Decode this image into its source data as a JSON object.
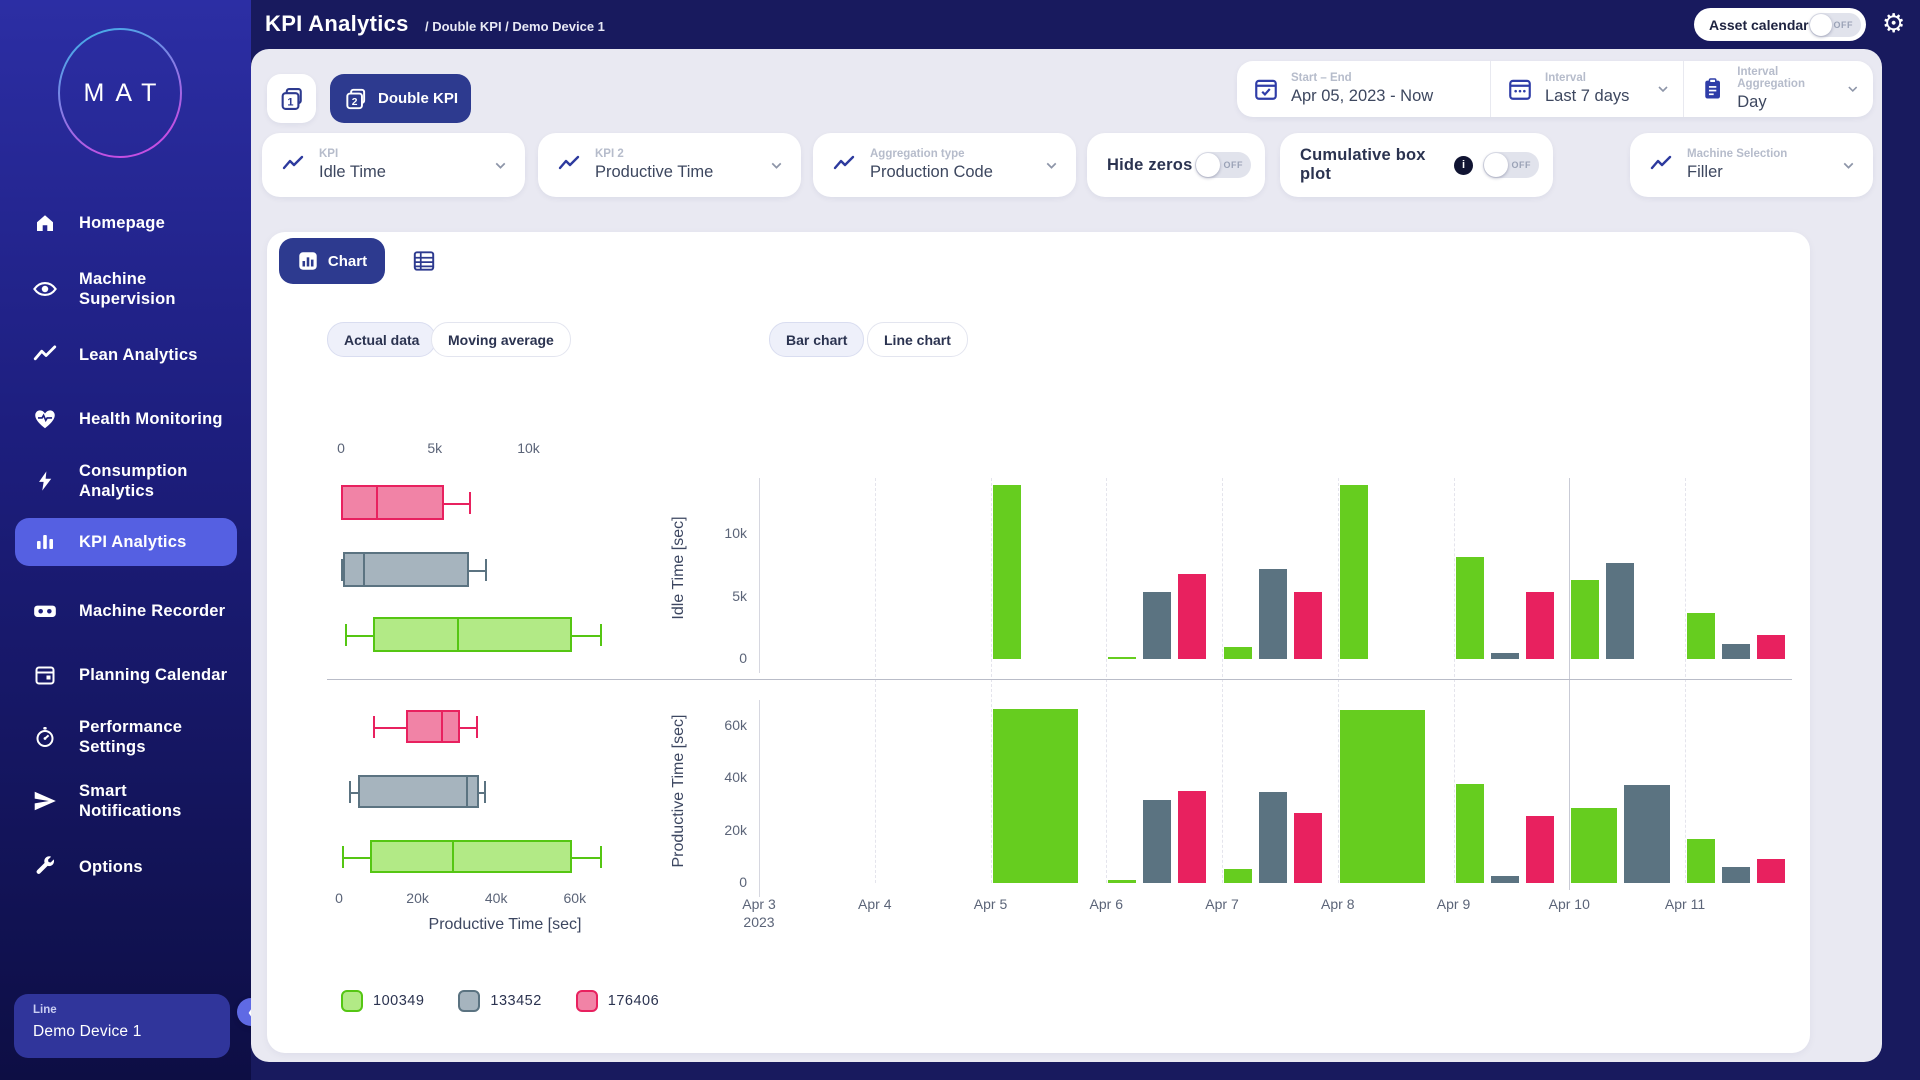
{
  "topbar": {
    "title": "KPI Analytics",
    "breadcrumb": "/ Double KPI  / Demo Device 1",
    "asset_calendar": {
      "label": "Asset calendar",
      "state": "OFF"
    }
  },
  "sidebar": {
    "logo_text": "MAT",
    "items": [
      {
        "label": "Homepage",
        "icon": "home-icon",
        "active": false
      },
      {
        "label": "Machine Supervision",
        "icon": "eye-icon",
        "active": false
      },
      {
        "label": "Lean Analytics",
        "icon": "trend-icon",
        "active": false
      },
      {
        "label": "Health Monitoring",
        "icon": "heart-icon",
        "active": false
      },
      {
        "label": "Consumption Analytics",
        "icon": "bolt-icon",
        "active": false
      },
      {
        "label": "KPI Analytics",
        "icon": "bars-icon",
        "active": true
      },
      {
        "label": "Machine Recorder",
        "icon": "recorder-icon",
        "active": false
      },
      {
        "label": "Planning Calendar",
        "icon": "calendar-icon",
        "active": false
      },
      {
        "label": "Performance Settings",
        "icon": "stopwatch-icon",
        "active": false
      },
      {
        "label": "Smart Notifications",
        "icon": "send-icon",
        "active": false
      },
      {
        "label": "Options",
        "icon": "wrench-icon",
        "active": false
      }
    ],
    "device_card": {
      "label": "Line",
      "value": "Demo Device 1"
    }
  },
  "view_toggle": {
    "double_label": "Double KPI"
  },
  "range_bar": {
    "start_end": {
      "label": "Start – End",
      "value": "Apr 05, 2023 - Now"
    },
    "interval": {
      "label": "Interval",
      "value": "Last 7 days"
    },
    "aggregation": {
      "label": "Interval Aggregation",
      "value": "Day"
    }
  },
  "filters": {
    "kpi": {
      "label": "KPI",
      "value": "Idle Time"
    },
    "kpi2": {
      "label": "KPI 2",
      "value": "Productive Time"
    },
    "agg_type": {
      "label": "Aggregation type",
      "value": "Production Code"
    },
    "hide_zeros": {
      "label": "Hide zeros",
      "state": "OFF"
    },
    "cumulative": {
      "label": "Cumulative box plot",
      "state": "OFF"
    },
    "machine": {
      "label": "Machine Selection",
      "value": "Filler"
    }
  },
  "toolbar": {
    "chart_tab": "Chart",
    "actual_data": "Actual data",
    "moving_average": "Moving average",
    "bar_chart": "Bar chart",
    "line_chart": "Line chart"
  },
  "colors": {
    "green": "#66cd1f",
    "gray": "#5b7381",
    "pink": "#e8215f",
    "green_fill": "#b2ea86",
    "gray_fill": "#a6b4be",
    "pink_fill": "#f183a6",
    "accent_navy": "#2d3a8f",
    "active_nav": "#5560e2"
  },
  "legend": [
    {
      "label": "100349",
      "color_key": "green"
    },
    {
      "label": "133452",
      "color_key": "gray"
    },
    {
      "label": "176406",
      "color_key": "pink"
    }
  ],
  "chart_data": [
    {
      "type": "boxplot",
      "title": "Idle Time [sec]",
      "orientation": "horizontal",
      "axis": {
        "min": 0,
        "max": 14800,
        "position": "top",
        "ticks": [
          {
            "label": "0",
            "value": 0
          },
          {
            "label": "5k",
            "value": 5000
          },
          {
            "label": "10k",
            "value": 10000
          }
        ]
      },
      "series": [
        {
          "name": "176406",
          "color_key": "pink",
          "min": null,
          "q1": 0,
          "median": 1850,
          "q3": 5500,
          "max": 6800
        },
        {
          "name": "133452",
          "color_key": "gray",
          "min": 0,
          "q1": 100,
          "median": 1150,
          "q3": 6800,
          "max": 7700
        },
        {
          "name": "100349",
          "color_key": "green",
          "min": 200,
          "q1": 1700,
          "median": 6200,
          "q3": 12300,
          "max": 13800
        }
      ]
    },
    {
      "type": "boxplot",
      "title": "Productive Time [sec]",
      "orientation": "horizontal",
      "axis": {
        "min": 0,
        "max": 70000,
        "position": "bottom",
        "ticks": [
          {
            "label": "0",
            "value": 0
          },
          {
            "label": "20k",
            "value": 20000
          },
          {
            "label": "40k",
            "value": 40000
          },
          {
            "label": "60k",
            "value": 60000
          }
        ]
      },
      "series": [
        {
          "name": "176406",
          "color_key": "pink",
          "min": 8700,
          "q1": 17000,
          "median": 26000,
          "q3": 30800,
          "max": 34900
        },
        {
          "name": "133452",
          "color_key": "gray",
          "min": 2500,
          "q1": 4800,
          "median": 32300,
          "q3": 35600,
          "max": 36900
        },
        {
          "name": "100349",
          "color_key": "green",
          "min": 800,
          "q1": 7900,
          "median": 28800,
          "q3": 59300,
          "max": 66400
        }
      ]
    },
    {
      "type": "bar",
      "ylabel": "Idle Time [sec]",
      "ylim": [
        0,
        14500
      ],
      "yticks": [
        {
          "label": "0",
          "value": 0
        },
        {
          "label": "5k",
          "value": 5000
        },
        {
          "label": "10k",
          "value": 10000
        }
      ],
      "categories": [
        "Apr 3",
        "Apr 4",
        "Apr 5",
        "Apr 6",
        "Apr 7",
        "Apr 8",
        "Apr 9",
        "Apr 10",
        "Apr 11"
      ],
      "year_label": "2023",
      "series": [
        {
          "name": "100349",
          "color_key": "green",
          "values": [
            null,
            null,
            13900,
            200,
            1000,
            13900,
            8200,
            6300,
            3700
          ]
        },
        {
          "name": "133452",
          "color_key": "gray",
          "values": [
            null,
            null,
            null,
            5400,
            7200,
            null,
            500,
            7700,
            1200
          ]
        },
        {
          "name": "176406",
          "color_key": "pink",
          "values": [
            null,
            null,
            null,
            6800,
            5400,
            null,
            5400,
            null,
            1900
          ]
        }
      ]
    },
    {
      "type": "bar",
      "ylabel": "Productive Time [sec]",
      "ylim": [
        0,
        70000
      ],
      "yticks": [
        {
          "label": "0",
          "value": 0
        },
        {
          "label": "20k",
          "value": 20000
        },
        {
          "label": "40k",
          "value": 40000
        },
        {
          "label": "60k",
          "value": 60000
        }
      ],
      "categories": [
        "Apr 3",
        "Apr 4",
        "Apr 5",
        "Apr 6",
        "Apr 7",
        "Apr 8",
        "Apr 9",
        "Apr 10",
        "Apr 11"
      ],
      "series": [
        {
          "name": "100349",
          "color_key": "green",
          "values": [
            null,
            null,
            66500,
            1000,
            5400,
            66000,
            38000,
            28700,
            17000
          ]
        },
        {
          "name": "133452",
          "color_key": "gray",
          "values": [
            null,
            null,
            null,
            31800,
            35000,
            null,
            2500,
            37300,
            6100
          ]
        },
        {
          "name": "176406",
          "color_key": "pink",
          "values": [
            null,
            null,
            null,
            35300,
            26700,
            null,
            25700,
            null,
            9200
          ]
        }
      ]
    }
  ]
}
